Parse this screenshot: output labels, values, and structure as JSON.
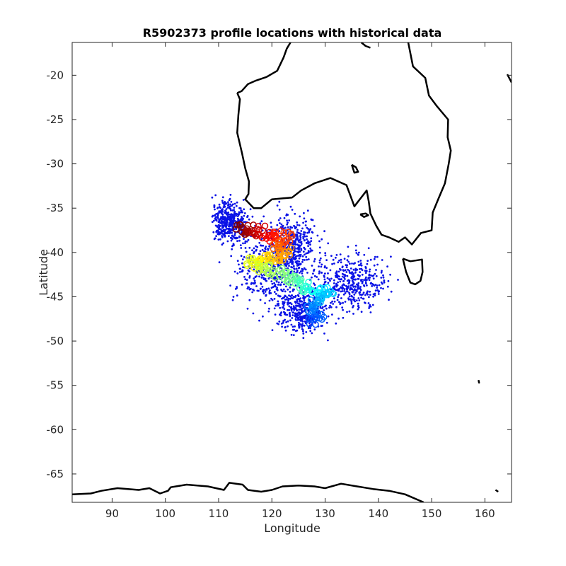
{
  "chart_data": {
    "type": "scatter",
    "title": "R5902373 profile locations with historical data",
    "xlabel": "Longitude",
    "ylabel": "Latitude",
    "xlim": [
      82.5,
      165
    ],
    "ylim": [
      -68.2,
      -16.3
    ],
    "xticks": [
      90,
      100,
      110,
      120,
      130,
      140,
      150,
      160
    ],
    "yticks": [
      -20,
      -25,
      -30,
      -35,
      -40,
      -45,
      -50,
      -55,
      -60,
      -65
    ],
    "grid": false,
    "legend": "none",
    "colors": {
      "historical_points": "#0a12e6",
      "coastline": "#000000",
      "colormap": "jet"
    },
    "series": [
      {
        "kind": "historical",
        "marker": "dot",
        "regions": [
          {
            "center": [
              119,
              -41.5
            ],
            "spread": [
              7.5,
              5.2
            ]
          },
          {
            "center": [
              124,
              -39.5
            ],
            "spread": [
              5.5,
              3.8
            ]
          },
          {
            "center": [
              135,
              -43.5
            ],
            "spread": [
              7.0,
              3.5
            ]
          },
          {
            "center": [
              126,
              -46.5
            ],
            "spread": [
              5.0,
              2.6
            ]
          },
          {
            "center": [
              112,
              -36.5
            ],
            "spread": [
              3.5,
              2.5
            ]
          }
        ]
      },
      {
        "kind": "float_track",
        "marker": "circle",
        "color_scale": "time (jet)",
        "points": [
          [
            114,
            -37.3
          ],
          [
            115,
            -37.6
          ],
          [
            116,
            -37.4
          ],
          [
            117,
            -37.9
          ],
          [
            118,
            -37.5
          ],
          [
            119,
            -38.0
          ],
          [
            120,
            -38.4
          ],
          [
            121,
            -38.1
          ],
          [
            122,
            -38.6
          ],
          [
            123,
            -38.2
          ],
          [
            122,
            -39.2
          ],
          [
            121,
            -39.6
          ],
          [
            122,
            -40.1
          ],
          [
            123,
            -39.8
          ],
          [
            121.5,
            -40.5
          ],
          [
            120,
            -40.8
          ],
          [
            119,
            -40.6
          ],
          [
            118,
            -40.9
          ],
          [
            117,
            -41.2
          ],
          [
            116,
            -41.0
          ],
          [
            118,
            -41.6
          ],
          [
            119,
            -42.0
          ],
          [
            120,
            -42.4
          ],
          [
            122,
            -42.2
          ],
          [
            123,
            -42.8
          ],
          [
            124,
            -43.2
          ],
          [
            125,
            -43.6
          ],
          [
            126,
            -44.0
          ],
          [
            127,
            -43.8
          ],
          [
            128,
            -44.4
          ],
          [
            129,
            -44.6
          ],
          [
            130,
            -44.5
          ],
          [
            131,
            -44.8
          ],
          [
            129,
            -45.3
          ],
          [
            128,
            -45.8
          ],
          [
            127,
            -46.3
          ],
          [
            128,
            -46.8
          ],
          [
            129,
            -47.3
          ],
          [
            127.5,
            -47.6
          ]
        ]
      }
    ],
    "coastlines": [
      {
        "name": "Australia",
        "lonlat": [
          [
            113.5,
            -22.0
          ],
          [
            114.0,
            -22.7
          ],
          [
            113.7,
            -24.5
          ],
          [
            113.5,
            -26.5
          ],
          [
            114.4,
            -28.8
          ],
          [
            115.0,
            -30.5
          ],
          [
            115.7,
            -32.0
          ],
          [
            115.6,
            -33.4
          ],
          [
            115.0,
            -34.0
          ],
          [
            116.6,
            -35.0
          ],
          [
            118.0,
            -35.0
          ],
          [
            120.0,
            -34.0
          ],
          [
            122.0,
            -33.9
          ],
          [
            123.8,
            -33.8
          ],
          [
            125.5,
            -33.0
          ],
          [
            128.0,
            -32.2
          ],
          [
            131.0,
            -31.6
          ],
          [
            134.0,
            -32.4
          ],
          [
            135.5,
            -34.8
          ],
          [
            137.8,
            -33.0
          ],
          [
            138.2,
            -34.3
          ],
          [
            138.5,
            -35.6
          ],
          [
            139.6,
            -37.0
          ],
          [
            140.6,
            -38.0
          ],
          [
            142.0,
            -38.3
          ],
          [
            143.8,
            -38.8
          ],
          [
            145.0,
            -38.3
          ],
          [
            146.3,
            -39.1
          ],
          [
            148.0,
            -37.8
          ],
          [
            150.0,
            -37.5
          ],
          [
            150.2,
            -35.5
          ],
          [
            151.3,
            -33.9
          ],
          [
            152.5,
            -32.2
          ],
          [
            153.2,
            -30.0
          ],
          [
            153.6,
            -28.5
          ],
          [
            153.0,
            -27.0
          ],
          [
            153.1,
            -25.0
          ],
          [
            151.0,
            -23.5
          ],
          [
            149.5,
            -22.3
          ],
          [
            148.8,
            -20.3
          ],
          [
            146.5,
            -19.0
          ],
          [
            145.6,
            -16.3
          ]
        ]
      },
      {
        "name": "Australia-north",
        "lonlat": [
          [
            123.5,
            -16.3
          ],
          [
            122.8,
            -17.0
          ],
          [
            122.2,
            -18.0
          ],
          [
            121.0,
            -19.5
          ],
          [
            119.0,
            -20.2
          ],
          [
            117.0,
            -20.6
          ],
          [
            115.5,
            -21.0
          ],
          [
            114.3,
            -21.8
          ],
          [
            113.5,
            -22.0
          ]
        ]
      },
      {
        "name": "Gulf of Carpentaria edge",
        "lonlat": [
          [
            136.8,
            -16.3
          ],
          [
            137.6,
            -16.7
          ],
          [
            138.5,
            -16.9
          ]
        ]
      },
      {
        "name": "Tasmania",
        "lonlat": [
          [
            144.6,
            -40.7
          ],
          [
            146.0,
            -41.0
          ],
          [
            148.2,
            -40.8
          ],
          [
            148.3,
            -42.2
          ],
          [
            147.9,
            -43.2
          ],
          [
            146.9,
            -43.6
          ],
          [
            146.0,
            -43.4
          ],
          [
            145.2,
            -42.2
          ],
          [
            144.6,
            -40.7
          ]
        ]
      },
      {
        "name": "Kangaroo Island",
        "lonlat": [
          [
            136.6,
            -35.7
          ],
          [
            137.6,
            -35.6
          ],
          [
            138.1,
            -35.8
          ],
          [
            137.3,
            -36.0
          ],
          [
            136.6,
            -35.7
          ]
        ]
      },
      {
        "name": "Eyre Peninsula",
        "lonlat": [
          [
            135.0,
            -30.1
          ],
          [
            135.8,
            -30.4
          ],
          [
            136.2,
            -30.9
          ],
          [
            135.5,
            -31.0
          ],
          [
            135.0,
            -30.1
          ]
        ]
      },
      {
        "name": "Antarctica",
        "lonlat": [
          [
            82.5,
            -67.3
          ],
          [
            86.0,
            -67.2
          ],
          [
            88.0,
            -66.9
          ],
          [
            91.0,
            -66.6
          ],
          [
            95.0,
            -66.8
          ],
          [
            97.0,
            -66.6
          ],
          [
            99.0,
            -67.2
          ],
          [
            100.5,
            -66.9
          ],
          [
            101.0,
            -66.5
          ],
          [
            104.0,
            -66.2
          ],
          [
            108.0,
            -66.4
          ],
          [
            111.0,
            -66.8
          ],
          [
            112.0,
            -66.0
          ],
          [
            114.5,
            -66.2
          ],
          [
            115.5,
            -66.8
          ],
          [
            118.0,
            -67.0
          ],
          [
            120.0,
            -66.8
          ],
          [
            122.0,
            -66.4
          ],
          [
            125.0,
            -66.3
          ],
          [
            128.0,
            -66.4
          ],
          [
            130.0,
            -66.6
          ],
          [
            133.0,
            -66.1
          ],
          [
            136.0,
            -66.4
          ],
          [
            139.0,
            -66.7
          ],
          [
            142.0,
            -66.9
          ],
          [
            145.0,
            -67.3
          ],
          [
            148.5,
            -68.2
          ]
        ]
      },
      {
        "name": "Macquarie Island",
        "lonlat": [
          [
            158.8,
            -54.4
          ],
          [
            158.9,
            -54.7
          ],
          [
            158.8,
            -54.4
          ]
        ]
      },
      {
        "name": "Antarctica-east-fragment",
        "lonlat": [
          [
            162.0,
            -66.8
          ],
          [
            162.5,
            -67.0
          ]
        ]
      },
      {
        "name": "East-edge fragment",
        "lonlat": [
          [
            164.2,
            -19.9
          ],
          [
            165.0,
            -20.8
          ]
        ]
      }
    ]
  }
}
